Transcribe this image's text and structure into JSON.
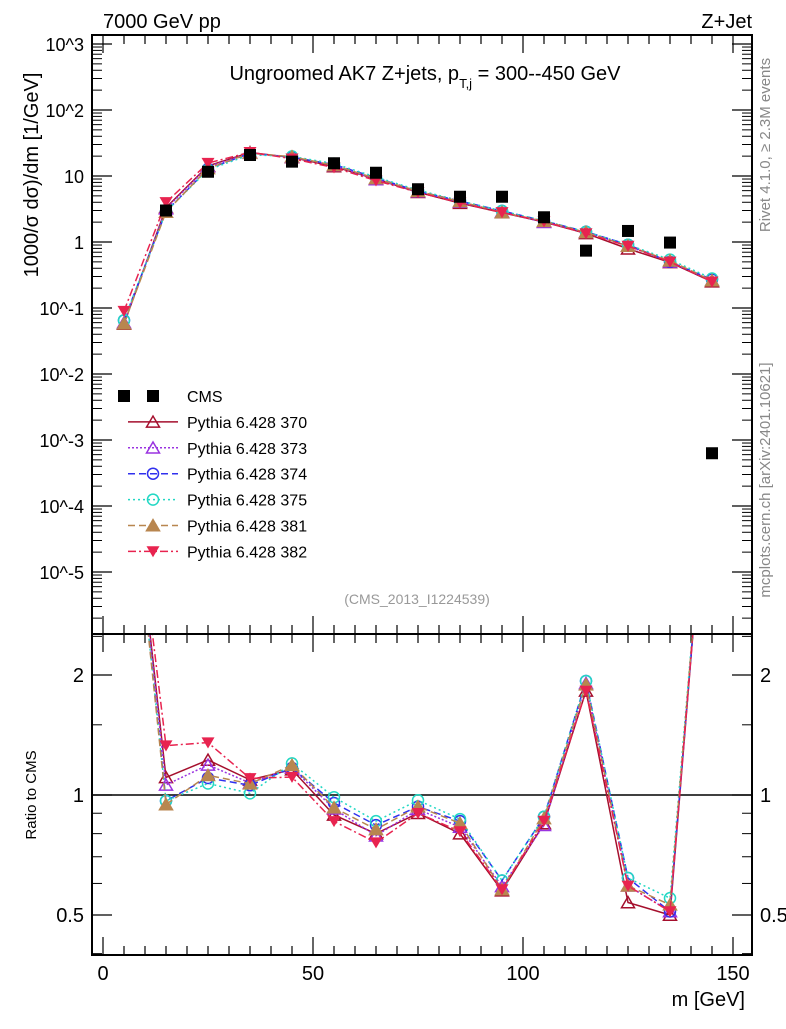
{
  "header": {
    "left": "7000 GeV pp",
    "right": "Z+Jet",
    "title_main": "Ungroomed AK7 Z+jets, p",
    "title_sub": "T,j",
    "title_rest": " = 300--450 GeV",
    "analysis_id": "(CMS_2013_I1224539)",
    "side_rivet": "Rivet 4.1.0, ≥ 2.3M events",
    "side_mcplots": "mcplots.cern.ch [arXiv:2401.10621]"
  },
  "chart_data": [
    {
      "type": "line",
      "panel": "main",
      "ylabel": "1000/σ   dσ)/dm [1/GeV]",
      "yscale": "log",
      "ylim": [
        1.2e-06,
        1400
      ],
      "xlim": [
        -2.5,
        155
      ],
      "ytick_labels": [
        "10^3",
        "10^2",
        "10",
        "1",
        "10^-1",
        "10^-2",
        "10^-3",
        "10^-4",
        "10^-5"
      ],
      "ytick_values": [
        1000,
        100,
        10,
        1,
        0.1,
        0.01,
        0.001,
        0.0001,
        1e-05
      ],
      "legend_position": "middle-left",
      "x": [
        5,
        15,
        25,
        35,
        45,
        55,
        65,
        75,
        85,
        95,
        105,
        115,
        125,
        135,
        145
      ],
      "series": [
        {
          "name": "CMS",
          "color": "#000000",
          "marker": "square",
          "line": "none",
          "values": [
            null,
            3.0,
            11.6,
            20.8,
            16.5,
            15.6,
            11.2,
            6.3,
            4.85,
            4.85,
            2.37,
            0.74,
            1.47,
            0.98,
            0.00063
          ]
        },
        {
          "name": "Pythia 6.428 370",
          "color": "#a50f2d",
          "marker": "triangle-open",
          "line": "solid",
          "values": [
            0.057,
            3.32,
            14.2,
            22.7,
            19.1,
            13.9,
            8.96,
            5.67,
            3.88,
            2.79,
            2.01,
            1.35,
            0.79,
            0.49,
            0.25
          ]
        },
        {
          "name": "Pythia 6.428 373",
          "color": "#9a33e0",
          "marker": "triangle-open",
          "line": "dotted",
          "values": [
            0.06,
            3.18,
            13.8,
            22.3,
            19.3,
            14.4,
            8.85,
            5.8,
            4.03,
            2.86,
            1.99,
            1.41,
            0.87,
            0.5,
            0.26
          ]
        },
        {
          "name": "Pythia 6.428 374",
          "color": "#3030ee",
          "marker": "circle-open",
          "line": "dashed",
          "values": [
            0.065,
            2.9,
            12.8,
            22.0,
            19.3,
            14.9,
            9.41,
            5.89,
            4.17,
            2.96,
            2.09,
            1.43,
            0.91,
            0.5,
            0.27
          ]
        },
        {
          "name": "Pythia 6.428 375",
          "color": "#22d8c4",
          "marker": "circle-open",
          "line": "dotted-sparse",
          "values": [
            0.065,
            2.9,
            12.4,
            21.0,
            19.8,
            15.4,
            9.63,
            6.11,
            4.22,
            2.96,
            2.09,
            1.43,
            0.91,
            0.54,
            0.28
          ]
        },
        {
          "name": "Pythia 6.428 381",
          "color": "#b8864f",
          "marker": "triangle-filled",
          "line": "dashed",
          "values": [
            0.058,
            2.84,
            13.0,
            22.2,
            19.6,
            14.5,
            9.18,
            5.89,
            4.12,
            2.81,
            2.07,
            1.4,
            0.87,
            0.52,
            0.26
          ]
        },
        {
          "name": "Pythia 6.428 382",
          "color": "#e8234f",
          "marker": "triangle-down-filled",
          "line": "dashdot",
          "values": [
            0.09,
            3.99,
            15.7,
            22.9,
            18.3,
            13.4,
            8.51,
            5.67,
            3.93,
            2.81,
            2.04,
            1.35,
            0.87,
            0.5,
            0.25
          ]
        }
      ]
    },
    {
      "type": "line",
      "panel": "ratio",
      "ylabel": "Ratio to CMS",
      "xlabel": "m [GeV]",
      "yscale": "log",
      "ylim": [
        0.4,
        2.53
      ],
      "reference_line": 1,
      "ytick_labels": [
        "2",
        "1",
        "0.5"
      ],
      "ytick_values": [
        2,
        1,
        0.5
      ],
      "xtick_labels": [
        "0",
        "50",
        "100",
        "150"
      ],
      "xtick_values": [
        0,
        50,
        100,
        150
      ],
      "note": "ratio = Pythia / CMS per bin; off-scale at m=5 and m=145"
    }
  ]
}
